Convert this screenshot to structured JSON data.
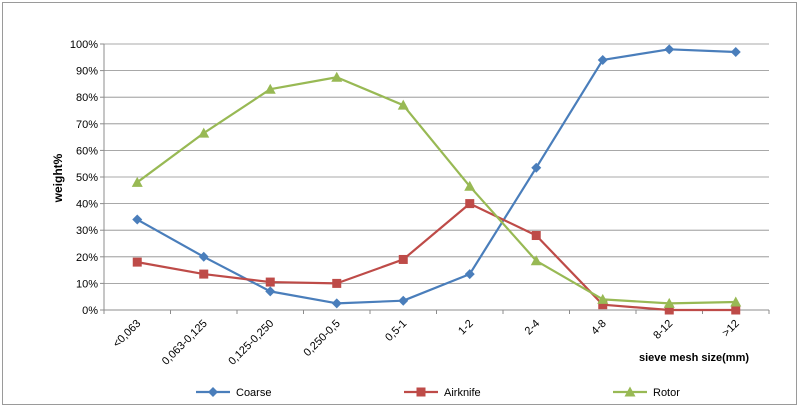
{
  "chart_data": {
    "type": "line",
    "title": "",
    "ylabel": "weight%",
    "xlabel": "sieve mesh size(mm)",
    "categories": [
      "<0,063",
      "0,063-0,125",
      "0,125-0,250",
      "0,250-0,5",
      "0,5-1",
      "1-2",
      "2-4",
      "4-8",
      "8-12",
      ">12"
    ],
    "ylim": [
      0,
      100
    ],
    "yticks": [
      "0%",
      "10%",
      "20%",
      "30%",
      "40%",
      "50%",
      "60%",
      "70%",
      "80%",
      "90%",
      "100%"
    ],
    "grid": true,
    "legend_position": "bottom",
    "series": [
      {
        "name": "Coarse",
        "color": "#4a7ebb",
        "marker": "diamond",
        "values": [
          34,
          20,
          7,
          2.5,
          3.5,
          13.5,
          53.5,
          94,
          98,
          97
        ]
      },
      {
        "name": "Airknife",
        "color": "#be4b48",
        "marker": "square",
        "values": [
          18,
          13.5,
          10.5,
          10,
          19,
          40,
          28,
          2,
          0,
          0
        ]
      },
      {
        "name": "Rotor",
        "color": "#98b954",
        "marker": "triangle",
        "values": [
          48,
          66.5,
          83,
          87.5,
          77,
          46.5,
          18.5,
          4,
          2.5,
          3
        ]
      }
    ]
  }
}
